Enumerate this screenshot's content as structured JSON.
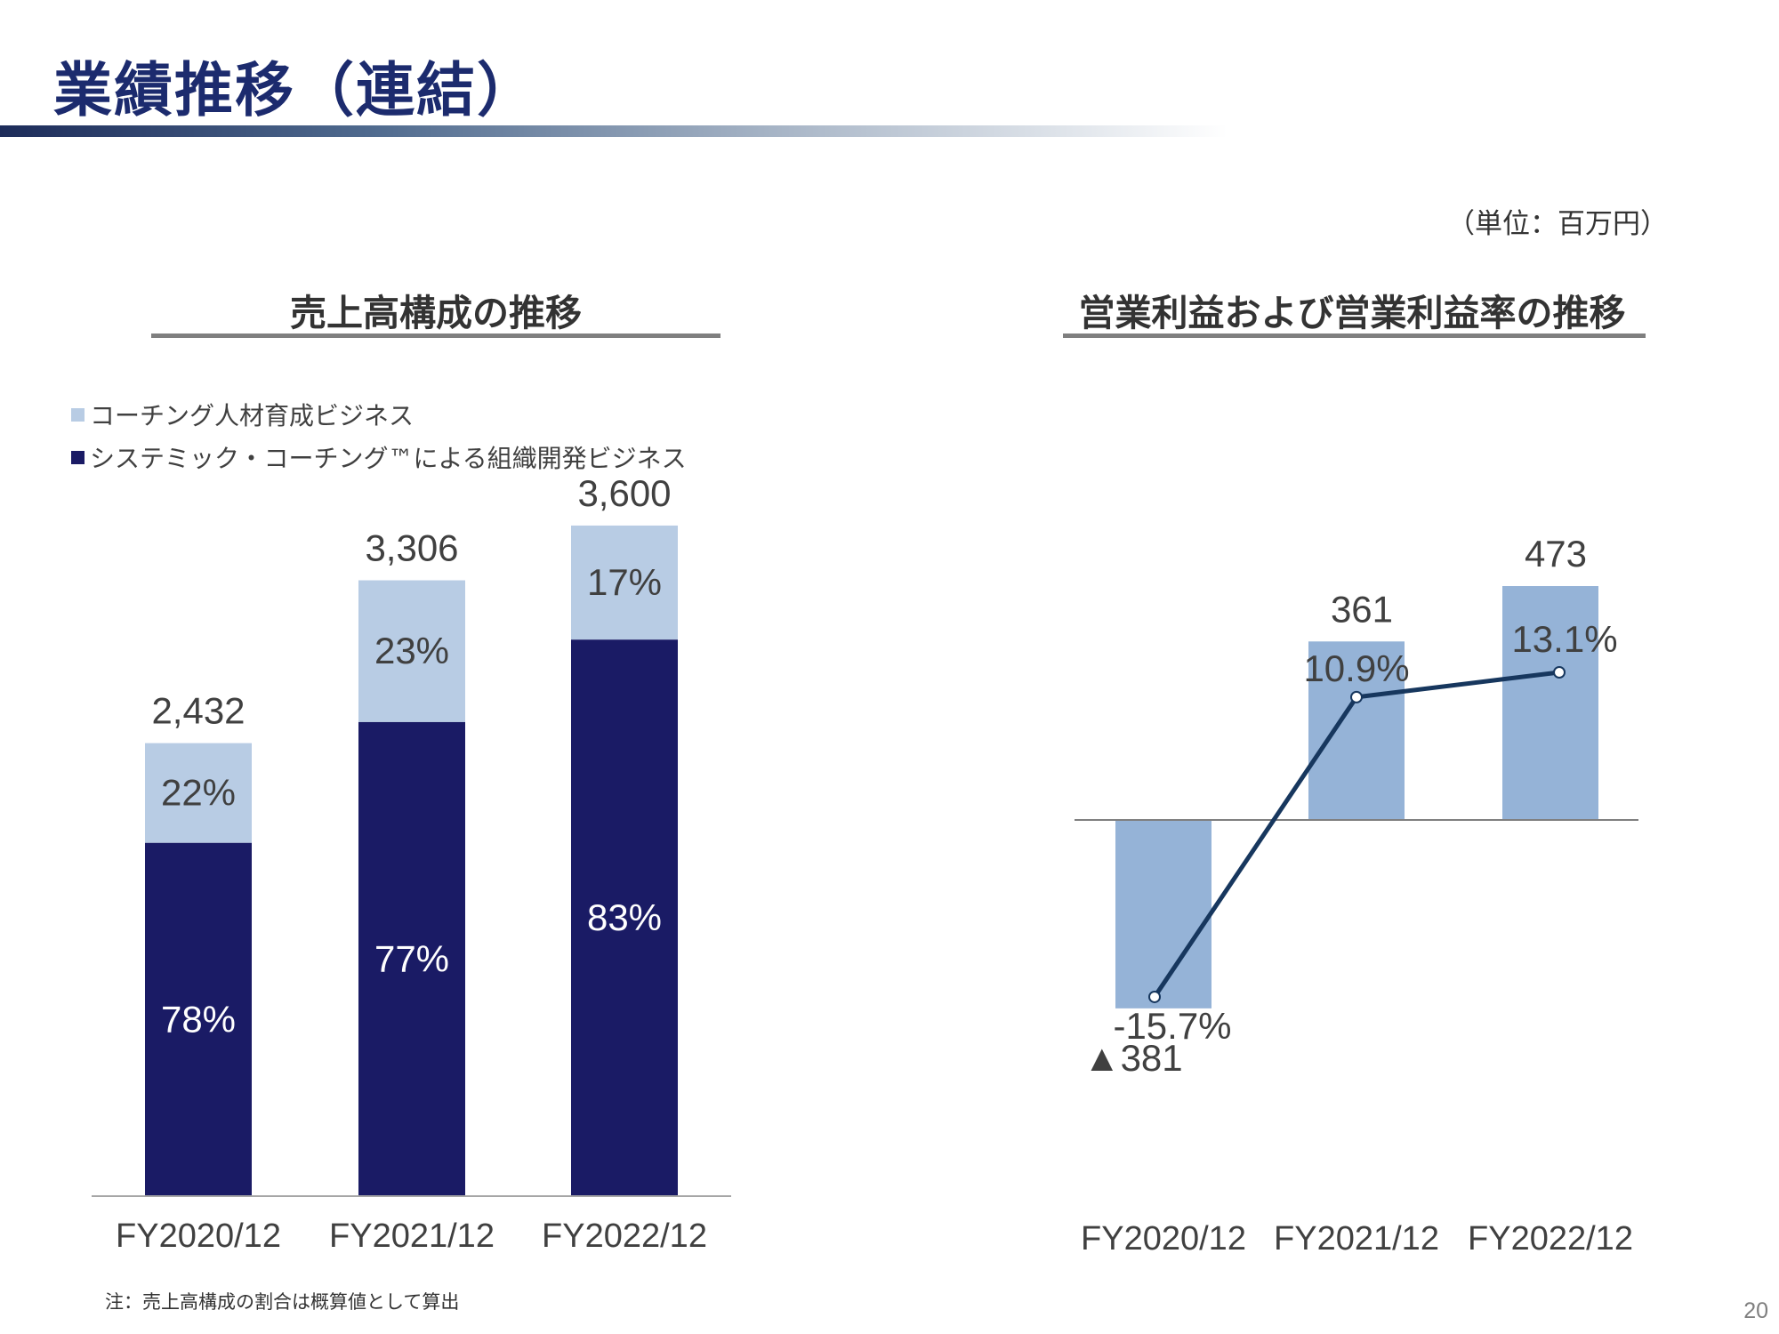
{
  "title": "業績推移（連結）",
  "unit_note": "（単位：百万円）",
  "footnote": "注：売上高構成の割合は概算値として算出",
  "page_number": "20",
  "colors": {
    "title": "#1c2b6e",
    "dark_navy": "#1a1b65",
    "light_blue": "#b8cce4",
    "mid_blue": "#95b3d7",
    "line": "#17375e"
  },
  "chart_data": [
    {
      "type": "bar",
      "stacked": true,
      "title": "売上高構成の推移",
      "categories": [
        "FY2020/12",
        "FY2021/12",
        "FY2022/12"
      ],
      "totals": [
        2432,
        3306,
        3600
      ],
      "total_labels": [
        "2,432",
        "3,306",
        "3,600"
      ],
      "legend": [
        "コーチング人材育成ビジネス",
        "システミック・コーチング™による組織開発ビジネス"
      ],
      "legend_placement": "top-left",
      "series": [
        {
          "name": "システミック・コーチング™による組織開発ビジネス",
          "color": "#1a1b65",
          "percent": [
            78,
            77,
            83
          ],
          "labels": [
            "78%",
            "77%",
            "83%"
          ]
        },
        {
          "name": "コーチング人材育成ビジネス",
          "color": "#b8cce4",
          "percent": [
            22,
            23,
            17
          ],
          "labels": [
            "22%",
            "23%",
            "17%"
          ]
        }
      ],
      "ylim": [
        0,
        3700
      ],
      "grid": false
    },
    {
      "type": "bar",
      "title": "営業利益および営業利益率の推移",
      "categories": [
        "FY2020/12",
        "FY2021/12",
        "FY2022/12"
      ],
      "series": [
        {
          "kind": "bar",
          "color": "#95b3d7",
          "values": [
            -381,
            361,
            473
          ],
          "labels": [
            "▲381",
            "361",
            "473"
          ]
        },
        {
          "kind": "line",
          "color": "#17375e",
          "values": [
            -15.7,
            10.9,
            13.1
          ],
          "labels": [
            "-15.7%",
            "10.9%",
            "13.1%"
          ]
        }
      ],
      "bar_ylim": [
        -400,
        500
      ],
      "line_ylim": [
        -23,
        20
      ],
      "grid": false
    }
  ]
}
